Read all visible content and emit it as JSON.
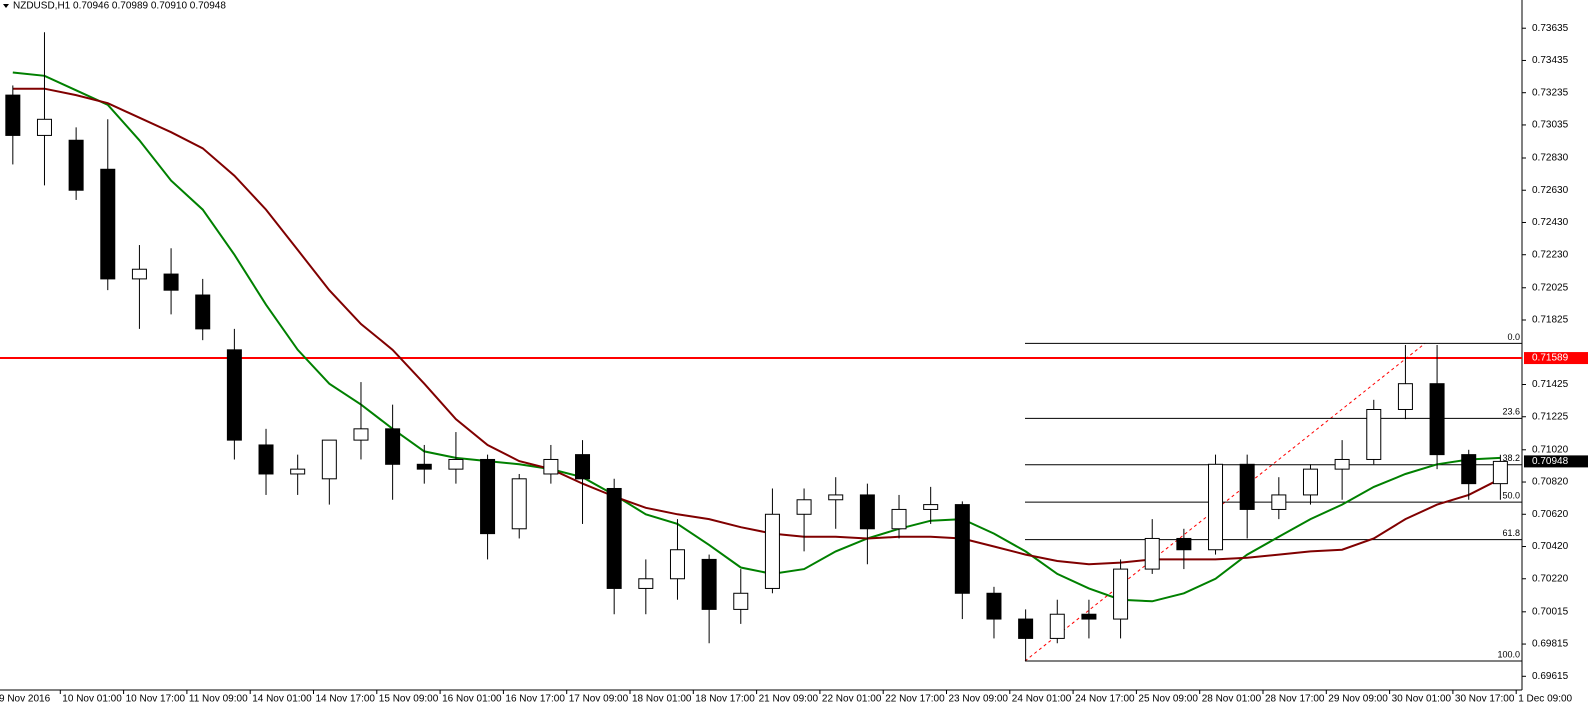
{
  "chart_data": {
    "type": "candlestick",
    "header": "NZDUSD,H1  0.70946 0.70989 0.70910 0.70948",
    "up_color": "#ffffff",
    "down_color": "#000000",
    "ylim": [
      0.6953,
      0.7381
    ],
    "yticks": [
      0.73635,
      0.73435,
      0.73235,
      0.73035,
      {
        "value": 0.7283,
        "label": "0.72830"
      },
      {
        "value": 0.7263,
        "label": "0.72630"
      },
      {
        "value": 0.7243,
        "label": "0.72430"
      },
      {
        "value": 0.7223,
        "label": "0.72230"
      },
      0.72025,
      0.71825,
      0.71425,
      0.71225,
      {
        "value": 0.7102,
        "label": "0.71020"
      },
      {
        "value": 0.7082,
        "label": "0.70820"
      },
      {
        "value": 0.7062,
        "label": "0.70620"
      },
      {
        "value": 0.7042,
        "label": "0.70420"
      },
      {
        "value": 0.7022,
        "label": "0.70220"
      },
      0.70015,
      0.69815,
      0.69615
    ],
    "x_labels": [
      "9 Nov 2016",
      "10 Nov 01:00",
      "10 Nov 17:00",
      "11 Nov 09:00",
      "14 Nov 01:00",
      "14 Nov 17:00",
      "15 Nov 09:00",
      "16 Nov 01:00",
      "16 Nov 17:00",
      "17 Nov 09:00",
      "18 Nov 01:00",
      "18 Nov 17:00",
      "21 Nov 09:00",
      "22 Nov 01:00",
      "22 Nov 17:00",
      "23 Nov 09:00",
      "24 Nov 01:00",
      "24 Nov 17:00",
      "25 Nov 09:00",
      "28 Nov 01:00",
      "28 Nov 17:00",
      "29 Nov 09:00",
      "30 Nov 01:00",
      "30 Nov 17:00",
      "1 Dec 09:00"
    ],
    "open": [
      0.7322,
      0.7297,
      0.7294,
      0.7276,
      0.7208,
      0.7211,
      0.7198,
      0.7164,
      0.7105,
      0.7087,
      0.7084,
      0.7108,
      0.7115,
      0.7093,
      0.709,
      0.7096,
      0.7053,
      0.7087,
      0.7099,
      0.7078,
      0.7016,
      0.7022,
      0.7034,
      0.7003,
      0.7016,
      0.7062,
      0.7071,
      0.7074,
      0.7053,
      0.7065,
      0.7068,
      0.7013,
      0.6997,
      0.6985,
      0.7,
      0.6997,
      0.7028,
      0.7047,
      0.704,
      0.7093,
      0.7065,
      0.7074,
      0.709,
      0.7096,
      0.7127,
      0.7143,
      0.7099,
      0.7081
    ],
    "high": [
      0.7328,
      0.7361,
      0.7302,
      0.7307,
      0.7229,
      0.7227,
      0.7208,
      0.7177,
      0.7115,
      0.7099,
      0.7108,
      0.7144,
      0.713,
      0.7105,
      0.7113,
      0.7099,
      0.7087,
      0.7105,
      0.7108,
      0.7084,
      0.7034,
      0.7059,
      0.7037,
      0.7028,
      0.7078,
      0.7078,
      0.7085,
      0.7081,
      0.7074,
      0.7079,
      0.707,
      0.7017,
      0.7003,
      0.7009,
      0.7009,
      0.7034,
      0.7059,
      0.7053,
      0.7099,
      0.7099,
      0.7085,
      0.7093,
      0.7108,
      0.7133,
      0.7167,
      0.7167,
      0.7102,
      0.70989
    ],
    "low": [
      0.7279,
      0.7266,
      0.7257,
      0.7201,
      0.7177,
      0.7186,
      0.717,
      0.7096,
      0.7074,
      0.7074,
      0.7068,
      0.7096,
      0.7071,
      0.7081,
      0.7081,
      0.7034,
      0.7047,
      0.7081,
      0.7056,
      0.7,
      0.7,
      0.7009,
      0.6982,
      0.6994,
      0.7013,
      0.7039,
      0.7053,
      0.7031,
      0.7047,
      0.7056,
      0.6997,
      0.6985,
      0.6971,
      0.6982,
      0.6985,
      0.6985,
      0.7025,
      0.7028,
      0.7037,
      0.7047,
      0.7059,
      0.7068,
      0.7071,
      0.7093,
      0.7121,
      0.709,
      0.7071,
      0.7071
    ],
    "close": [
      0.7297,
      0.7307,
      0.7263,
      0.7208,
      0.7214,
      0.7201,
      0.7177,
      0.7108,
      0.7087,
      0.709,
      0.7108,
      0.7115,
      0.7093,
      0.709,
      0.7096,
      0.705,
      0.7084,
      0.7096,
      0.7084,
      0.7016,
      0.7022,
      0.704,
      0.7003,
      0.7013,
      0.7062,
      0.7071,
      0.7074,
      0.7053,
      0.7065,
      0.7068,
      0.7013,
      0.6997,
      0.6985,
      0.7,
      0.6997,
      0.7028,
      0.7047,
      0.704,
      0.7093,
      0.7065,
      0.7074,
      0.709,
      0.7096,
      0.7127,
      0.7143,
      0.7099,
      0.7081,
      0.70948
    ],
    "lines": [
      {
        "color": "#008000",
        "values": [
          0.7336,
          0.7334,
          0.7325,
          0.7316,
          0.7294,
          0.7269,
          0.7251,
          0.7223,
          0.7192,
          0.7164,
          0.7143,
          0.713,
          0.7115,
          0.7101,
          0.7097,
          0.7095,
          0.7093,
          0.709,
          0.7085,
          0.7074,
          0.7062,
          0.7056,
          0.7043,
          0.7029,
          0.7025,
          0.7028,
          0.7039,
          0.7047,
          0.7053,
          0.7058,
          0.7059,
          0.705,
          0.7039,
          0.7025,
          0.7016,
          0.7009,
          0.7008,
          0.7013,
          0.7022,
          0.7037,
          0.7048,
          0.7059,
          0.7068,
          0.7079,
          0.7087,
          0.7093,
          0.7096,
          0.7097
        ]
      },
      {
        "color": "#800000",
        "values": [
          0.7326,
          0.7326,
          0.7322,
          0.7317,
          0.7308,
          0.7299,
          0.7289,
          0.7272,
          0.7251,
          0.7226,
          0.7201,
          0.718,
          0.7164,
          0.7143,
          0.7121,
          0.7105,
          0.7095,
          0.709,
          0.7081,
          0.7073,
          0.7066,
          0.7062,
          0.7059,
          0.7054,
          0.705,
          0.7048,
          0.7048,
          0.7047,
          0.7048,
          0.7048,
          0.7047,
          0.7042,
          0.7037,
          0.7033,
          0.7031,
          0.7032,
          0.7034,
          0.7034,
          0.7034,
          0.7035,
          0.7037,
          0.7039,
          0.704,
          0.7047,
          0.7059,
          0.7068,
          0.7074,
          0.7084
        ]
      }
    ],
    "hline": {
      "value": 0.71589,
      "color": "#ff0000"
    },
    "last_price": 0.70948,
    "fib": {
      "high": 0.7168,
      "low": 0.6971,
      "color": "#ff0000",
      "levels": [
        {
          "value": 0,
          "label": "0.0"
        },
        23.6,
        38.2,
        {
          "value": 50,
          "label": "50.0"
        },
        61.8,
        {
          "value": 100,
          "label": "100.0"
        }
      ]
    }
  }
}
